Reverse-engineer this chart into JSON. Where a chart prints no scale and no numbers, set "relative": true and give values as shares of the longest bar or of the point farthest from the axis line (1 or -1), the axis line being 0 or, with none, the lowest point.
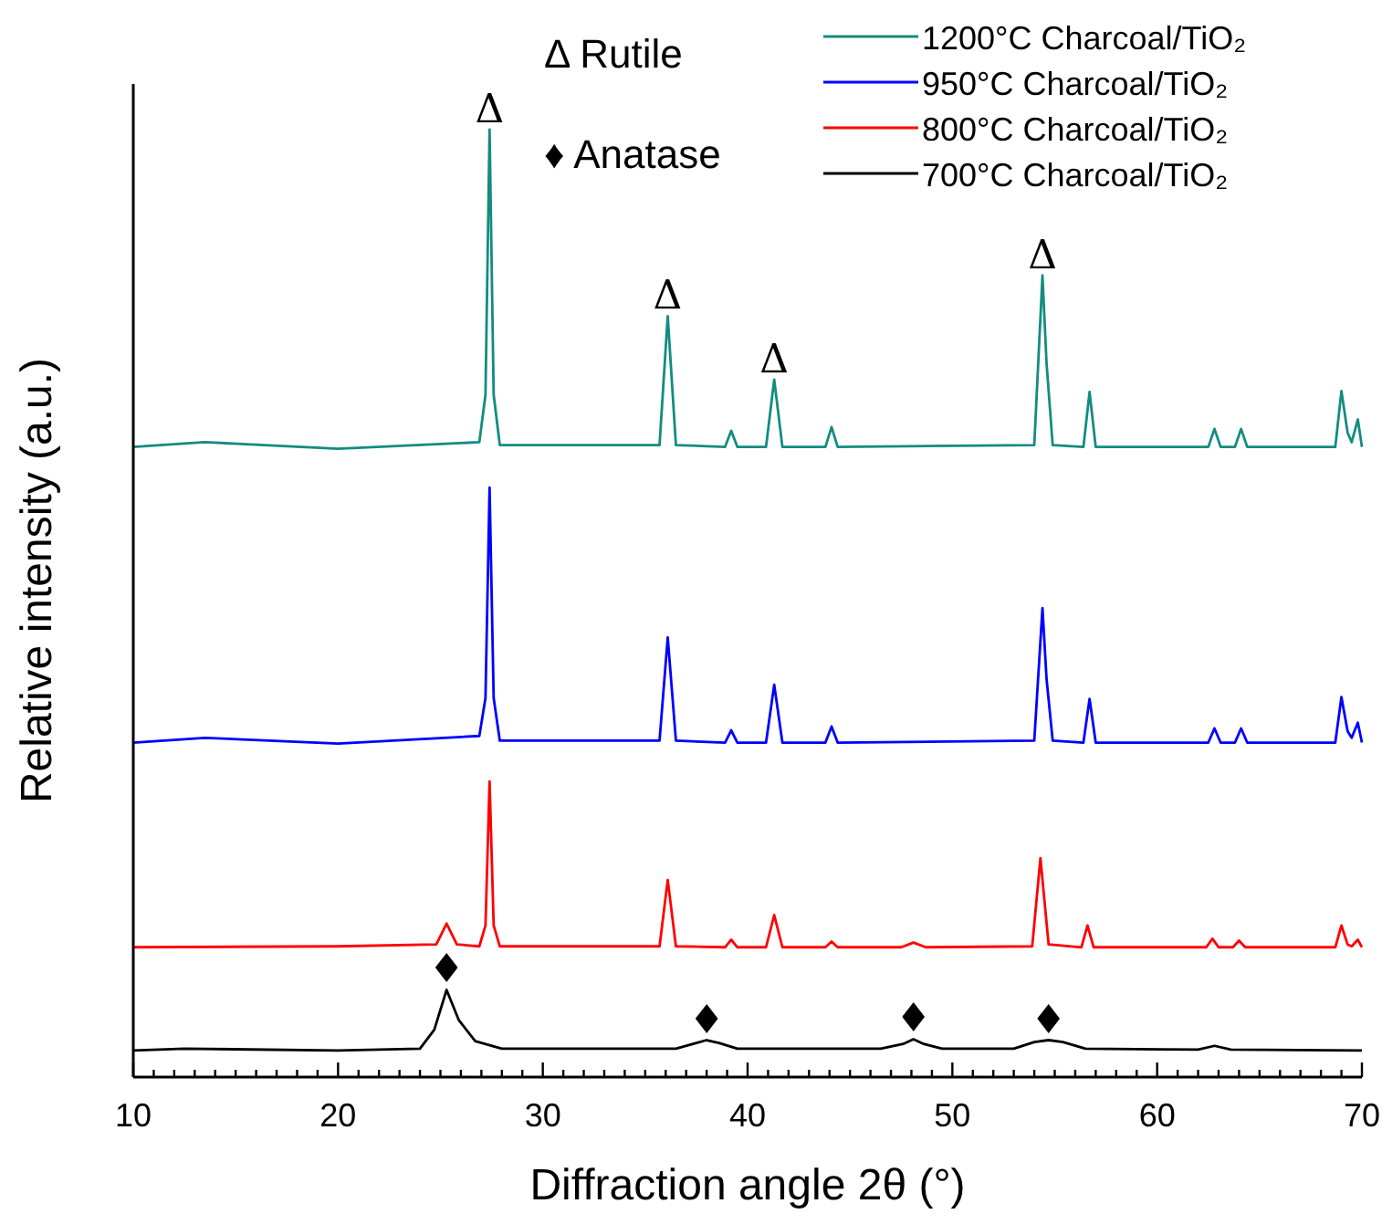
{
  "chart_data": {
    "type": "line",
    "relative": true,
    "xlabel": "Diffraction angle 2θ (°)",
    "ylabel": "Relative intensity (a.u.)",
    "xlim": [
      10,
      70
    ],
    "xticks": [
      10,
      {
        "value": 11,
        "label": null
      },
      {
        "value": 12,
        "label": null
      },
      {
        "value": 13,
        "label": null
      },
      {
        "value": 14,
        "label": null
      },
      {
        "value": 15,
        "label": null
      },
      {
        "value": 16,
        "label": null
      },
      {
        "value": 17,
        "label": null
      },
      {
        "value": 18,
        "label": null
      },
      {
        "value": 19,
        "label": null
      },
      20,
      {
        "value": 21,
        "label": null
      },
      {
        "value": 22,
        "label": null
      },
      {
        "value": 23,
        "label": null
      },
      {
        "value": 24,
        "label": null
      },
      {
        "value": 25,
        "label": null
      },
      {
        "value": 26,
        "label": null
      },
      {
        "value": 27,
        "label": null
      },
      {
        "value": 28,
        "label": null
      },
      {
        "value": 29,
        "label": null
      },
      30,
      {
        "value": 31,
        "label": null
      },
      {
        "value": 32,
        "label": null
      },
      {
        "value": 33,
        "label": null
      },
      {
        "value": 34,
        "label": null
      },
      {
        "value": 35,
        "label": null
      },
      {
        "value": 36,
        "label": null
      },
      {
        "value": 37,
        "label": null
      },
      {
        "value": 38,
        "label": null
      },
      {
        "value": 39,
        "label": null
      },
      40,
      {
        "value": 41,
        "label": null
      },
      {
        "value": 42,
        "label": null
      },
      {
        "value": 43,
        "label": null
      },
      {
        "value": 44,
        "label": null
      },
      {
        "value": 45,
        "label": null
      },
      {
        "value": 46,
        "label": null
      },
      {
        "value": 47,
        "label": null
      },
      {
        "value": 48,
        "label": null
      },
      {
        "value": 49,
        "label": null
      },
      50,
      {
        "value": 51,
        "label": null
      },
      {
        "value": 52,
        "label": null
      },
      {
        "value": 53,
        "label": null
      },
      {
        "value": 54,
        "label": null
      },
      {
        "value": 55,
        "label": null
      },
      {
        "value": 56,
        "label": null
      },
      {
        "value": 57,
        "label": null
      },
      {
        "value": 58,
        "label": null
      },
      {
        "value": 59,
        "label": null
      },
      60,
      {
        "value": 61,
        "label": null
      },
      {
        "value": 62,
        "label": null
      },
      {
        "value": 63,
        "label": null
      },
      {
        "value": 64,
        "label": null
      },
      {
        "value": 65,
        "label": null
      },
      {
        "value": 66,
        "label": null
      },
      {
        "value": 67,
        "label": null
      },
      {
        "value": 68,
        "label": null
      },
      {
        "value": 69,
        "label": null
      },
      70
    ],
    "legend": "top right",
    "marker": "none",
    "line_style": "solid",
    "series": [
      {
        "name": "1200°C Charcoal/TiO₂",
        "color": "#138c80",
        "x": [
          10,
          13.5,
          20,
          26.9,
          27.2,
          27.4,
          27.6,
          27.9,
          35.7,
          36.1,
          36.5,
          38.9,
          39.2,
          39.5,
          40.9,
          41.3,
          41.7,
          43.8,
          44.1,
          44.4,
          54.0,
          54.4,
          54.6,
          54.9,
          56.4,
          56.7,
          57.0,
          62.5,
          62.8,
          63.1,
          63.8,
          64.1,
          64.4,
          68.7,
          69.0,
          69.3,
          69.5,
          69.8,
          70
        ],
        "values": [
          0.665,
          0.67,
          0.663,
          0.67,
          0.72,
          1,
          0.72,
          0.667,
          0.667,
          0.803,
          0.667,
          0.665,
          0.682,
          0.665,
          0.665,
          0.736,
          0.665,
          0.665,
          0.686,
          0.665,
          0.667,
          0.846,
          0.753,
          0.667,
          0.665,
          0.723,
          0.665,
          0.665,
          0.684,
          0.665,
          0.665,
          0.684,
          0.665,
          0.665,
          0.724,
          0.68,
          0.67,
          0.694,
          0.665
        ]
      },
      {
        "name": "950°C Charcoal/TiO₂",
        "color": "#0000ff",
        "x": [
          10,
          13.5,
          20,
          26.9,
          27.2,
          27.4,
          27.6,
          27.9,
          35.7,
          36.1,
          36.5,
          38.9,
          39.2,
          39.5,
          40.9,
          41.3,
          41.7,
          43.8,
          44.1,
          44.4,
          54.0,
          54.4,
          54.6,
          54.9,
          56.4,
          56.7,
          57.0,
          62.5,
          62.8,
          63.1,
          63.8,
          64.1,
          64.4,
          68.7,
          69.0,
          69.3,
          69.5,
          69.8,
          70
        ],
        "values": [
          0.353,
          0.358,
          0.352,
          0.36,
          0.4,
          0.622,
          0.4,
          0.355,
          0.355,
          0.464,
          0.355,
          0.353,
          0.366,
          0.353,
          0.353,
          0.414,
          0.353,
          0.353,
          0.37,
          0.353,
          0.355,
          0.495,
          0.42,
          0.355,
          0.353,
          0.399,
          0.353,
          0.353,
          0.368,
          0.353,
          0.353,
          0.368,
          0.353,
          0.353,
          0.401,
          0.365,
          0.358,
          0.374,
          0.353
        ]
      },
      {
        "name": "800°C Charcoal/TiO₂",
        "color": "#ff0000",
        "x": [
          10,
          20,
          24.8,
          25.3,
          25.8,
          26.9,
          27.2,
          27.4,
          27.6,
          27.9,
          35.7,
          36.1,
          36.5,
          38.9,
          39.2,
          39.5,
          40.9,
          41.3,
          41.7,
          43.8,
          44.1,
          44.4,
          47.5,
          48.1,
          48.7,
          53.9,
          54.3,
          54.7,
          56.3,
          56.6,
          56.9,
          62.4,
          62.7,
          63.0,
          63.7,
          64.0,
          64.3,
          68.7,
          69.0,
          69.3,
          69.5,
          69.8,
          70
        ],
        "values": [
          0.137,
          0.138,
          0.14,
          0.162,
          0.14,
          0.138,
          0.16,
          0.312,
          0.16,
          0.138,
          0.138,
          0.208,
          0.138,
          0.137,
          0.145,
          0.137,
          0.137,
          0.171,
          0.137,
          0.137,
          0.143,
          0.137,
          0.137,
          0.142,
          0.137,
          0.138,
          0.231,
          0.14,
          0.137,
          0.16,
          0.137,
          0.137,
          0.146,
          0.137,
          0.137,
          0.144,
          0.137,
          0.137,
          0.16,
          0.14,
          0.138,
          0.145,
          0.137
        ]
      },
      {
        "name": "700°C Charcoal/TiO₂",
        "color": "#000000",
        "x": [
          10,
          12.5,
          20,
          24,
          24.7,
          25.3,
          25.9,
          26.7,
          28,
          36.5,
          37.5,
          38,
          38.6,
          39.5,
          46.5,
          47.6,
          48.1,
          48.6,
          49.5,
          53,
          54,
          54.7,
          55.4,
          56.5,
          62,
          62.8,
          63.6,
          70
        ],
        "values": [
          0.028,
          0.03,
          0.028,
          0.03,
          0.05,
          0.092,
          0.06,
          0.038,
          0.03,
          0.03,
          0.036,
          0.039,
          0.036,
          0.03,
          0.03,
          0.035,
          0.04,
          0.035,
          0.03,
          0.03,
          0.037,
          0.039,
          0.037,
          0.03,
          0.029,
          0.033,
          0.029,
          0.028
        ]
      }
    ],
    "annotations": [
      "Δ Rutile",
      "♦ Anatase",
      {
        "text": "Δ",
        "x": 27.4,
        "y": 1
      },
      {
        "text": "Δ",
        "x": 36.1,
        "y": 0.803
      },
      {
        "text": "Δ",
        "x": 41.3,
        "y": 0.736
      },
      {
        "text": "Δ",
        "x": 54.4,
        "y": 0.846
      },
      {
        "text": "♦",
        "x": 25.3,
        "y": 0.092
      },
      {
        "text": "♦",
        "x": 38,
        "y": 0.039
      },
      {
        "text": "♦",
        "x": 48.1,
        "y": 0.04
      },
      {
        "text": "♦",
        "x": 54.7,
        "y": 0.039
      }
    ]
  }
}
